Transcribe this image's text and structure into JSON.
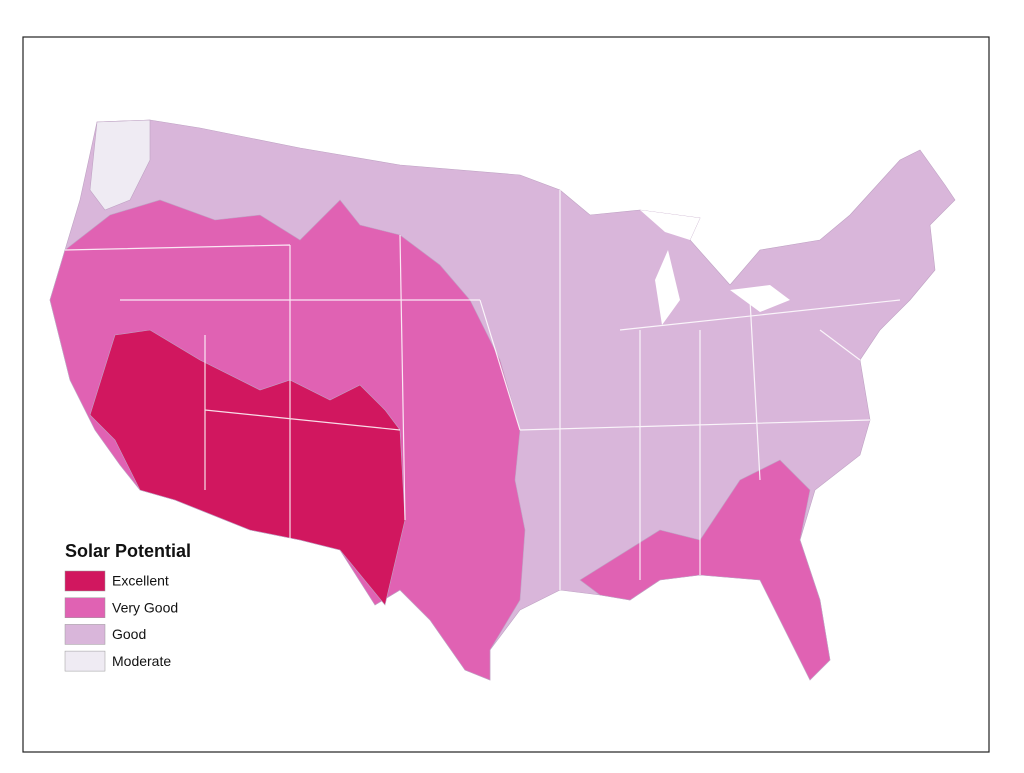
{
  "legend": {
    "title": "Solar Potential",
    "items": [
      {
        "label": "Excellent",
        "color": "#d1175f"
      },
      {
        "label": "Very Good",
        "color": "#e062b3"
      },
      {
        "label": "Good",
        "color": "#d9b6da"
      },
      {
        "label": "Moderate",
        "color": "#efebf3"
      }
    ]
  }
}
